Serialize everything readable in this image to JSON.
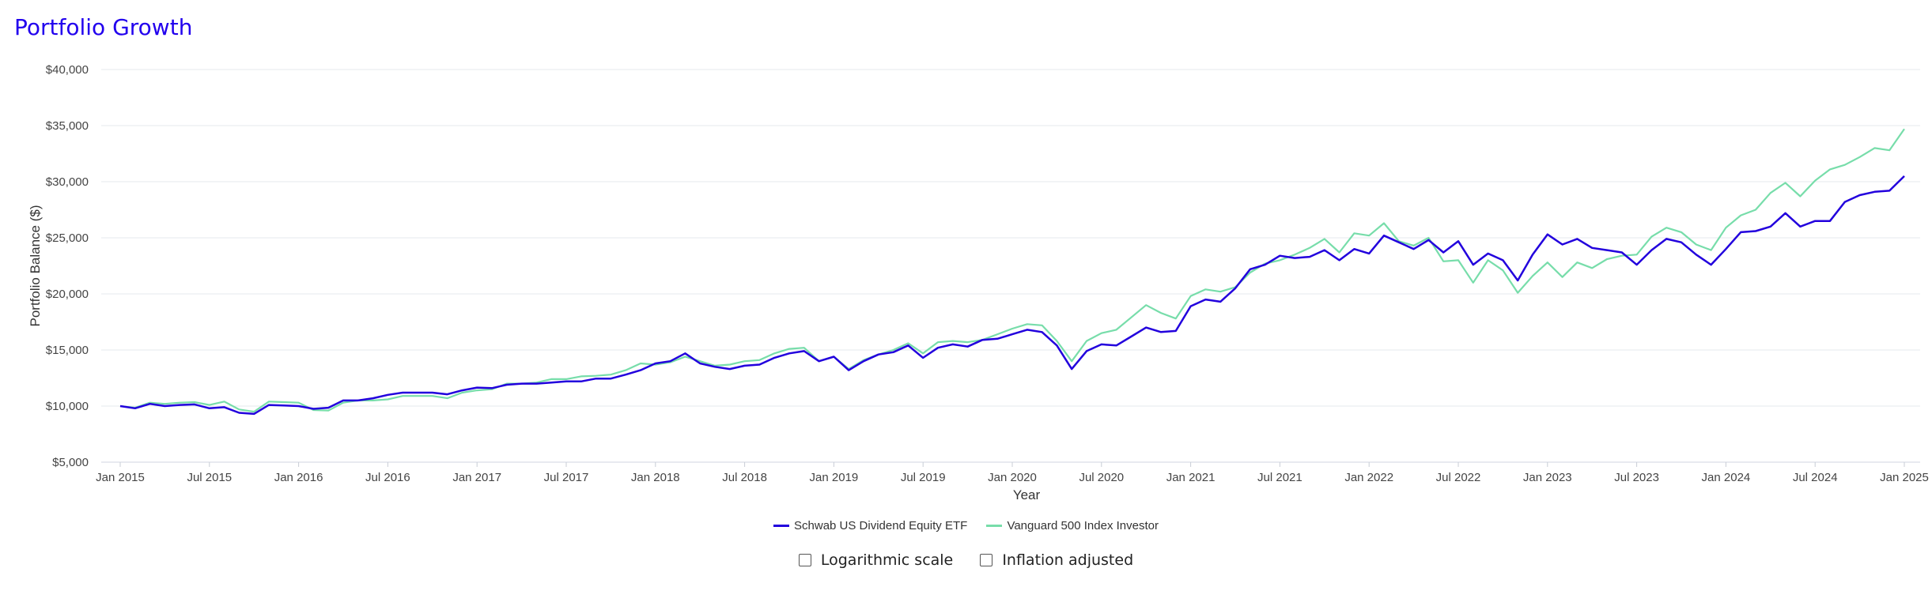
{
  "page": {
    "title": "Portfolio Growth"
  },
  "chart_data": {
    "type": "line",
    "title": "Portfolio Growth",
    "xlabel": "Year",
    "ylabel": "Portfolio Balance ($)",
    "ylim": [
      5000,
      40000
    ],
    "yticks": [
      "$5,000",
      "$10,000",
      "$15,000",
      "$20,000",
      "$25,000",
      "$30,000",
      "$35,000",
      "$40,000"
    ],
    "xticks": [
      "Jan 2015",
      "Jul 2015",
      "Jan 2016",
      "Jul 2016",
      "Jan 2017",
      "Jul 2017",
      "Jan 2018",
      "Jul 2018",
      "Jan 2019",
      "Jul 2019",
      "Jan 2020",
      "Jul 2020",
      "Jan 2021",
      "Jul 2021",
      "Jan 2022",
      "Jul 2022",
      "Jan 2023",
      "Jul 2023",
      "Jan 2024",
      "Jul 2024",
      "Jan 2025"
    ],
    "x_start": "Jan 2015",
    "x_end": "Jan 2025",
    "x_interval": "monthly",
    "grid": true,
    "legend_position": "bottom",
    "series": [
      {
        "name": "Schwab US Dividend Equity ETF",
        "color": "#2200dd",
        "values": [
          10000,
          9800,
          10200,
          10000,
          10100,
          10150,
          9800,
          9900,
          9400,
          9300,
          10100,
          10050,
          10000,
          9750,
          9850,
          10500,
          10500,
          10700,
          11000,
          11200,
          11200,
          11200,
          11050,
          11400,
          11650,
          11600,
          11900,
          12000,
          12000,
          12100,
          12200,
          12200,
          12450,
          12450,
          12800,
          13200,
          13800,
          14000,
          14700,
          13800,
          13500,
          13300,
          13600,
          13700,
          14300,
          14700,
          14900,
          14000,
          14400,
          13200,
          14000,
          14600,
          14800,
          15400,
          14300,
          15200,
          15500,
          15300,
          15900,
          16000,
          16400,
          16800,
          16600,
          15400,
          13300,
          14900,
          15500,
          15400,
          16200,
          17000,
          16600,
          16700,
          18900,
          19500,
          19300,
          20500,
          22200,
          22600,
          23400,
          23200,
          23300,
          23900,
          23000,
          24000,
          23600,
          25200,
          24600,
          24000,
          24800,
          23700,
          24700,
          22600,
          23600,
          23000,
          21200,
          23500,
          25300,
          24400,
          24900,
          24100,
          23900,
          23700,
          22600,
          23900,
          24900,
          24600,
          23500,
          22600,
          24000,
          25500,
          25600,
          26000,
          27200,
          26000,
          26500,
          26500,
          28200,
          28800,
          29100,
          29200,
          30500
        ]
      },
      {
        "name": "Vanguard 500 Index Investor",
        "color": "#77ddaa",
        "values": [
          10000,
          9850,
          10300,
          10200,
          10300,
          10350,
          10100,
          10400,
          9700,
          9500,
          10400,
          10350,
          10300,
          9650,
          9600,
          10300,
          10500,
          10500,
          10600,
          10900,
          10900,
          10900,
          10700,
          11200,
          11400,
          11500,
          12000,
          12000,
          12100,
          12400,
          12400,
          12650,
          12700,
          12800,
          13200,
          13800,
          13700,
          13900,
          14400,
          14000,
          13600,
          13700,
          14000,
          14100,
          14700,
          15100,
          15200,
          14000,
          14400,
          13300,
          14100,
          14600,
          15000,
          15600,
          14700,
          15700,
          15800,
          15700,
          15900,
          16400,
          16900,
          17300,
          17200,
          15800,
          14000,
          15800,
          16500,
          16800,
          17900,
          19000,
          18300,
          17800,
          19800,
          20400,
          20200,
          20600,
          21900,
          22700,
          23000,
          23500,
          24100,
          24900,
          23700,
          25400,
          25200,
          26300,
          24700,
          24300,
          25000,
          22900,
          23000,
          21000,
          23000,
          22100,
          20100,
          21600,
          22800,
          21500,
          22800,
          22300,
          23100,
          23400,
          23500,
          25100,
          25900,
          25500,
          24400,
          23900,
          25900,
          27000,
          27500,
          29000,
          29900,
          28700,
          30100,
          31100,
          31500,
          32200,
          33000,
          32800,
          34700
        ]
      }
    ]
  },
  "legend": {
    "series0_label": "Schwab US Dividend Equity ETF",
    "series1_label": "Vanguard 500 Index Investor"
  },
  "options": {
    "log_scale_label": "Logarithmic scale",
    "log_scale_checked": false,
    "inflation_label": "Inflation adjusted",
    "inflation_checked": false
  }
}
